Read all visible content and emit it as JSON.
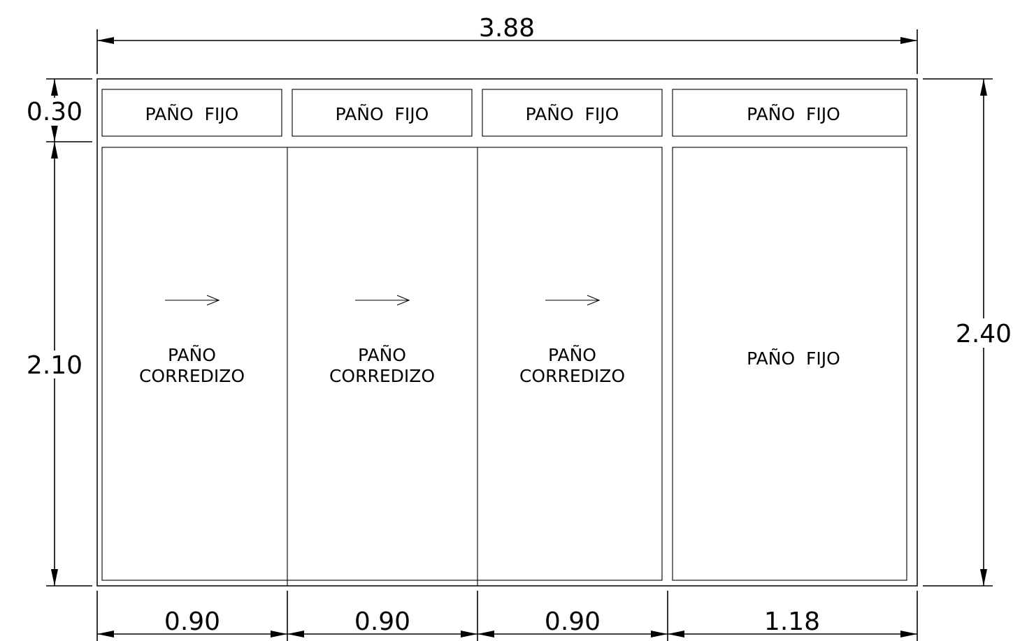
{
  "dimensions": {
    "total_width": "3.88",
    "total_height": "2.40",
    "top_height": "0.30",
    "bottom_height": "2.10",
    "panel_widths": [
      "0.90",
      "0.90",
      "0.90",
      "1.18"
    ]
  },
  "labels": {
    "fixed": "PAÑO  FIJO",
    "sliding_line1": "PAÑO",
    "sliding_line2": "CORREDIZO"
  }
}
